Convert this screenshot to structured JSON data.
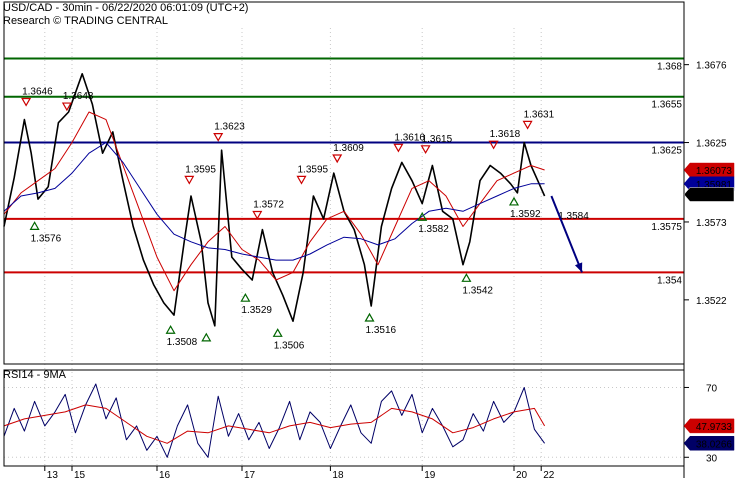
{
  "header": {
    "title": "USD/CAD - 30min - 06/22/2020 06:01:09 (UTC+2)",
    "subtitle": "Research © TRADING CENTRAL"
  },
  "colors": {
    "price": "#000000",
    "ma_fast": "#cc0000",
    "ma_slow": "#000099",
    "resistance": "#006600",
    "pivot": "#000080",
    "support": "#cc0000",
    "rsi": "#000066",
    "rsi_ma": "#cc0000",
    "arrow": "#000080"
  },
  "chart_data": [
    {
      "type": "line",
      "name": "price-panel",
      "ylim": [
        1.348,
        1.37
      ],
      "x_days": [
        "13",
        "15",
        "16",
        "17",
        "18",
        "19",
        "20",
        "22"
      ],
      "x_day_positions": [
        1.2,
        2.0,
        4.5,
        7.0,
        9.6,
        12.3,
        15.0,
        15.8
      ],
      "x_range": [
        0,
        20
      ],
      "y_ticks": [
        "1.3676",
        "1.3625",
        "1.3573",
        "1.3522"
      ],
      "levels": [
        {
          "value": 1.368,
          "label": "1.368",
          "kind": "resistance"
        },
        {
          "value": 1.3655,
          "label": "1.3655",
          "kind": "resistance"
        },
        {
          "value": 1.3625,
          "label": "1.3625",
          "kind": "pivot"
        },
        {
          "value": 1.3575,
          "label": "1.3575",
          "kind": "support"
        },
        {
          "value": 1.354,
          "label": "1.354",
          "kind": "support"
        }
      ],
      "current_markers": [
        {
          "value": 1.3607,
          "label": "1.36073",
          "kind": "ma_fast"
        },
        {
          "value": 1.3598,
          "label": "1.35981",
          "kind": "ma_slow"
        },
        {
          "value": 1.3591,
          "label": "1.3591",
          "kind": "price"
        }
      ],
      "annotations": [
        {
          "t": 0.65,
          "value": 1.3646,
          "label": "1.3646",
          "type": "high"
        },
        {
          "t": 1.85,
          "value": 1.3643,
          "label": "1.3643",
          "type": "high"
        },
        {
          "t": 0.9,
          "value": 1.3576,
          "label": "1.3576",
          "type": "low"
        },
        {
          "t": 6.3,
          "value": 1.3623,
          "label": "1.3623",
          "type": "high"
        },
        {
          "t": 5.45,
          "value": 1.3595,
          "label": "1.3595",
          "type": "high"
        },
        {
          "t": 4.9,
          "value": 1.3508,
          "label": "1.3508",
          "type": "low"
        },
        {
          "t": 5.95,
          "value": 1.3503,
          "label": "",
          "type": "low"
        },
        {
          "t": 7.45,
          "value": 1.3572,
          "label": "1.3572",
          "type": "high"
        },
        {
          "t": 7.1,
          "value": 1.3529,
          "label": "1.3529",
          "type": "low"
        },
        {
          "t": 8.05,
          "value": 1.3506,
          "label": "1.3506",
          "type": "low"
        },
        {
          "t": 8.75,
          "value": 1.3595,
          "label": "1.3595",
          "type": "high"
        },
        {
          "t": 9.8,
          "value": 1.3609,
          "label": "1.3609",
          "type": "high"
        },
        {
          "t": 10.75,
          "value": 1.3516,
          "label": "1.3516",
          "type": "low"
        },
        {
          "t": 11.6,
          "value": 1.3616,
          "label": "1.3616",
          "type": "high"
        },
        {
          "t": 12.3,
          "value": 1.3582,
          "label": "1.3582",
          "type": "low"
        },
        {
          "t": 12.4,
          "value": 1.3615,
          "label": "1.3615",
          "type": "high"
        },
        {
          "t": 13.6,
          "value": 1.3542,
          "label": "1.3542",
          "type": "low"
        },
        {
          "t": 14.4,
          "value": 1.3618,
          "label": "1.3618",
          "type": "high"
        },
        {
          "t": 15.0,
          "value": 1.3592,
          "label": "1.3592",
          "type": "low"
        },
        {
          "t": 15.4,
          "value": 1.3631,
          "label": "1.3631",
          "type": "high"
        },
        {
          "t": 16.3,
          "value": 1.3584,
          "label": "1.3584",
          "type": "level"
        }
      ],
      "forecast_arrow": {
        "from": [
          16.1,
          1.359
        ],
        "to": [
          17.0,
          1.354
        ]
      },
      "series": [
        {
          "role": "price",
          "t": [
            0.0,
            0.3,
            0.6,
            0.8,
            1.0,
            1.3,
            1.6,
            1.9,
            2.3,
            2.6,
            2.9,
            3.2,
            3.5,
            3.8,
            4.1,
            4.4,
            4.7,
            5.0,
            5.3,
            5.5,
            5.8,
            6.0,
            6.2,
            6.4,
            6.7,
            7.0,
            7.3,
            7.6,
            7.9,
            8.2,
            8.5,
            8.8,
            9.1,
            9.4,
            9.7,
            10.0,
            10.3,
            10.6,
            10.8,
            11.1,
            11.4,
            11.7,
            12.0,
            12.3,
            12.6,
            12.9,
            13.2,
            13.5,
            13.7,
            14.0,
            14.3,
            14.6,
            14.9,
            15.1,
            15.3,
            15.5,
            15.7,
            15.9
          ],
          "values": [
            1.357,
            1.3602,
            1.364,
            1.3618,
            1.3588,
            1.3596,
            1.3638,
            1.3645,
            1.367,
            1.365,
            1.3618,
            1.3632,
            1.36,
            1.357,
            1.3548,
            1.3532,
            1.352,
            1.3512,
            1.356,
            1.359,
            1.356,
            1.352,
            1.3505,
            1.362,
            1.355,
            1.3542,
            1.3535,
            1.3568,
            1.354,
            1.3525,
            1.3508,
            1.354,
            1.359,
            1.3575,
            1.3605,
            1.358,
            1.3568,
            1.3545,
            1.3518,
            1.357,
            1.3595,
            1.3612,
            1.36,
            1.3585,
            1.361,
            1.358,
            1.3575,
            1.3545,
            1.356,
            1.36,
            1.361,
            1.3605,
            1.3598,
            1.3592,
            1.3625,
            1.361,
            1.36,
            1.359
          ]
        },
        {
          "role": "ma_fast",
          "t": [
            0.0,
            0.5,
            1.0,
            1.5,
            2.0,
            2.5,
            3.0,
            3.5,
            4.0,
            4.5,
            5.0,
            5.5,
            6.0,
            6.5,
            7.0,
            7.5,
            8.0,
            8.5,
            9.0,
            9.5,
            10.0,
            10.5,
            11.0,
            11.5,
            12.0,
            12.5,
            13.0,
            13.5,
            14.0,
            14.5,
            15.0,
            15.5,
            15.9
          ],
          "values": [
            1.3578,
            1.3592,
            1.36,
            1.3608,
            1.3625,
            1.3645,
            1.364,
            1.361,
            1.358,
            1.355,
            1.3528,
            1.3545,
            1.356,
            1.357,
            1.3555,
            1.3548,
            1.3535,
            1.354,
            1.356,
            1.3575,
            1.358,
            1.3565,
            1.3545,
            1.357,
            1.3595,
            1.36,
            1.359,
            1.357,
            1.3585,
            1.36,
            1.3605,
            1.361,
            1.3607
          ]
        },
        {
          "role": "ma_slow",
          "t": [
            0.0,
            0.5,
            1.0,
            1.5,
            2.0,
            2.5,
            3.0,
            3.5,
            4.0,
            4.5,
            5.0,
            5.5,
            6.0,
            6.5,
            7.0,
            7.5,
            8.0,
            8.5,
            9.0,
            9.5,
            10.0,
            10.5,
            11.0,
            11.5,
            12.0,
            12.5,
            13.0,
            13.5,
            14.0,
            14.5,
            15.0,
            15.5,
            15.9
          ],
          "values": [
            1.358,
            1.359,
            1.3592,
            1.3595,
            1.3605,
            1.3618,
            1.3625,
            1.3612,
            1.3595,
            1.3578,
            1.3565,
            1.356,
            1.3556,
            1.3555,
            1.3552,
            1.355,
            1.3548,
            1.3548,
            1.3552,
            1.3558,
            1.3563,
            1.3562,
            1.3558,
            1.3562,
            1.3572,
            1.358,
            1.3582,
            1.358,
            1.3585,
            1.359,
            1.3595,
            1.3598,
            1.3598
          ]
        }
      ]
    },
    {
      "type": "line",
      "name": "rsi-panel",
      "title": "RSI14 - 9MA",
      "ylim": [
        25,
        80
      ],
      "y_ticks": [
        70,
        30
      ],
      "current_markers": [
        {
          "value": 47.9733,
          "label": "47.9733",
          "kind": "rsi_ma"
        },
        {
          "value": 38.0266,
          "label": "38.0266",
          "kind": "rsi"
        }
      ],
      "series": [
        {
          "role": "rsi",
          "t": [
            0.0,
            0.3,
            0.6,
            0.9,
            1.2,
            1.5,
            1.8,
            2.1,
            2.4,
            2.7,
            3.0,
            3.3,
            3.6,
            3.9,
            4.2,
            4.5,
            4.8,
            5.1,
            5.4,
            5.7,
            6.0,
            6.3,
            6.6,
            6.9,
            7.2,
            7.5,
            7.8,
            8.1,
            8.4,
            8.7,
            9.0,
            9.3,
            9.6,
            9.9,
            10.2,
            10.5,
            10.8,
            11.1,
            11.4,
            11.7,
            12.0,
            12.3,
            12.6,
            12.9,
            13.2,
            13.5,
            13.8,
            14.1,
            14.4,
            14.7,
            15.0,
            15.3,
            15.6,
            15.9
          ],
          "values": [
            42,
            58,
            45,
            62,
            48,
            56,
            66,
            44,
            60,
            72,
            52,
            64,
            40,
            48,
            34,
            42,
            30,
            48,
            60,
            38,
            30,
            65,
            42,
            55,
            40,
            50,
            35,
            47,
            62,
            40,
            56,
            50,
            35,
            48,
            60,
            44,
            38,
            62,
            68,
            54,
            66,
            44,
            58,
            48,
            36,
            40,
            55,
            45,
            62,
            50,
            56,
            70,
            46,
            38
          ]
        },
        {
          "role": "rsi_ma",
          "t": [
            0.0,
            0.6,
            1.2,
            1.8,
            2.4,
            3.0,
            3.6,
            4.2,
            4.8,
            5.4,
            6.0,
            6.6,
            7.2,
            7.8,
            8.4,
            9.0,
            9.6,
            10.2,
            10.8,
            11.4,
            12.0,
            12.6,
            13.2,
            13.8,
            14.4,
            15.0,
            15.6,
            15.9
          ],
          "values": [
            48,
            52,
            54,
            56,
            60,
            58,
            50,
            42,
            38,
            45,
            44,
            48,
            46,
            44,
            48,
            50,
            47,
            49,
            50,
            58,
            56,
            52,
            44,
            47,
            52,
            56,
            58,
            48
          ]
        }
      ]
    }
  ]
}
